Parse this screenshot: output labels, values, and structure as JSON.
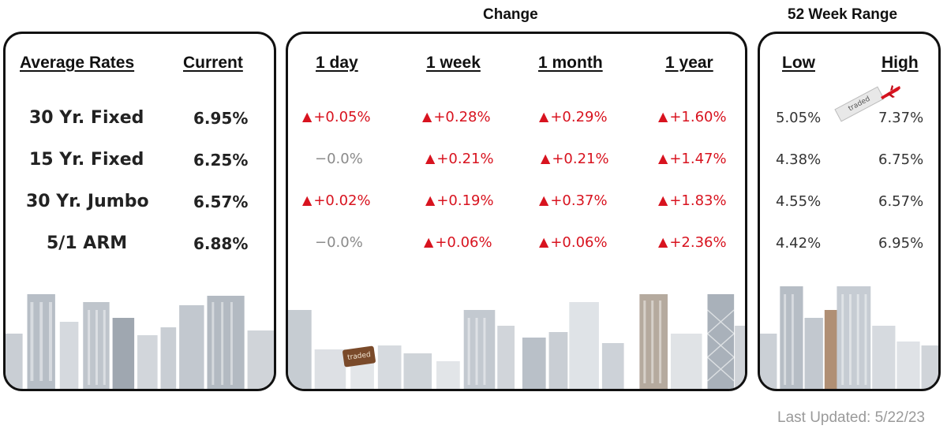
{
  "headers": {
    "change_group": "Change",
    "range_group": "52 Week Range",
    "average_rates": "Average Rates",
    "current": "Current",
    "day": "1 day",
    "week": "1 week",
    "month": "1 month",
    "year": "1 year",
    "low": "Low",
    "high": "High"
  },
  "rows": [
    {
      "label": "30 Yr. Fixed",
      "current": "6.95%",
      "day": "+0.05%",
      "week": "+0.28%",
      "month": "+0.29%",
      "year": "+1.60%",
      "low": "5.05%",
      "high": "7.37%"
    },
    {
      "label": "15 Yr. Fixed",
      "current": "6.25%",
      "day": "−0.0%",
      "week": "+0.21%",
      "month": "+0.21%",
      "year": "+1.47%",
      "low": "4.38%",
      "high": "6.75%"
    },
    {
      "label": "30 Yr. Jumbo",
      "current": "6.57%",
      "day": "+0.02%",
      "week": "+0.19%",
      "month": "+0.37%",
      "year": "+1.83%",
      "low": "4.55%",
      "high": "6.57%"
    },
    {
      "label": "5/1 ARM",
      "current": "6.88%",
      "day": "−0.0%",
      "week": "+0.06%",
      "month": "+0.06%",
      "year": "+2.36%",
      "low": "4.42%",
      "high": "6.95%"
    }
  ],
  "indicators": {
    "up_symbol": "▲",
    "up_color": "#d8131f",
    "flat_color": "#8a8a8a"
  },
  "decorations": {
    "banner_text": "traded",
    "sign_text": "traded"
  },
  "footer": {
    "last_updated": "Last Updated: 5/22/23"
  },
  "colors": {
    "border": "#111111",
    "background": "#ffffff",
    "footer_text": "#9a9a9a"
  }
}
